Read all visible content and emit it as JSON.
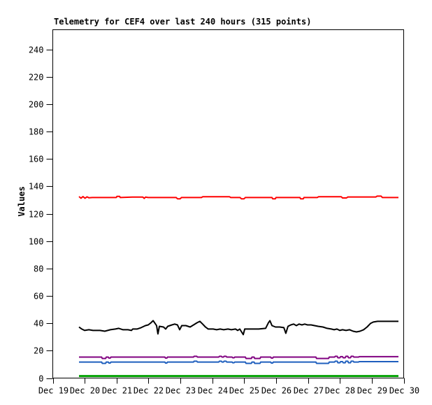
{
  "window": {
    "background": "#ffffff"
  },
  "chart_data": {
    "type": "line",
    "title": "Telemetry for CEF4 over last 240 hours (315 points)",
    "xlabel": "",
    "ylabel": "Values",
    "grid": false,
    "legend": "none",
    "border_color": "#000000",
    "x_axis": {
      "unit": "date",
      "tick_labels": [
        "Dec 19",
        "Dec 20",
        "Dec 21",
        "Dec 22",
        "Dec 23",
        "Dec 24",
        "Dec 25",
        "Dec 26",
        "Dec 27",
        "Dec 28",
        "Dec 29",
        "Dec 30"
      ],
      "data_span_hours": 240
    },
    "y_axis": {
      "ticks": [
        0,
        20,
        40,
        60,
        80,
        100,
        120,
        140,
        160,
        180,
        200,
        220,
        240
      ],
      "ylim": [
        0,
        254
      ]
    },
    "series": [
      {
        "name": "red",
        "color": "#ff0000",
        "width": 2,
        "points": [
          [
            0,
            132.5
          ],
          [
            1.5,
            131.3
          ],
          [
            3,
            132.5
          ],
          [
            4.5,
            131.3
          ],
          [
            6,
            132.3
          ],
          [
            7.5,
            131.6
          ],
          [
            10,
            131.8
          ],
          [
            28,
            131.8
          ],
          [
            28.5,
            132.6
          ],
          [
            30.5,
            132.6
          ],
          [
            31,
            131.8
          ],
          [
            40,
            132.1
          ],
          [
            48,
            132.1
          ],
          [
            49,
            131.2
          ],
          [
            50,
            132.1
          ],
          [
            52,
            131.8
          ],
          [
            73,
            131.8
          ],
          [
            74,
            130.9
          ],
          [
            76,
            130.9
          ],
          [
            77,
            131.8
          ],
          [
            92,
            131.8
          ],
          [
            93,
            132.4
          ],
          [
            113,
            132.4
          ],
          [
            114,
            131.8
          ],
          [
            121,
            131.8
          ],
          [
            122,
            130.9
          ],
          [
            124,
            130.9
          ],
          [
            125,
            131.8
          ],
          [
            145,
            131.8
          ],
          [
            145.5,
            130.9
          ],
          [
            147.5,
            130.9
          ],
          [
            148,
            131.8
          ],
          [
            166,
            131.8
          ],
          [
            166.5,
            130.9
          ],
          [
            168.5,
            130.9
          ],
          [
            169,
            131.8
          ],
          [
            179,
            131.8
          ],
          [
            180,
            132.4
          ],
          [
            197,
            132.4
          ],
          [
            198,
            131.5
          ],
          [
            201,
            131.5
          ],
          [
            202,
            132.2
          ],
          [
            223,
            132.2
          ],
          [
            224,
            132.8
          ],
          [
            227,
            132.8
          ],
          [
            228,
            131.8
          ],
          [
            240,
            131.8
          ]
        ]
      },
      {
        "name": "black",
        "color": "#000000",
        "width": 2,
        "points": [
          [
            0,
            37.3
          ],
          [
            2.1,
            35.8
          ],
          [
            4.2,
            34.8
          ],
          [
            7.4,
            35.3
          ],
          [
            10.5,
            34.8
          ],
          [
            15.8,
            34.8
          ],
          [
            19.4,
            34.2
          ],
          [
            23.6,
            35.3
          ],
          [
            27.3,
            35.8
          ],
          [
            29.9,
            36.3
          ],
          [
            33.1,
            35.3
          ],
          [
            36.8,
            35.3
          ],
          [
            39.4,
            34.8
          ],
          [
            40.4,
            35.8
          ],
          [
            43.6,
            35.8
          ],
          [
            46.7,
            36.8
          ],
          [
            49.9,
            38.3
          ],
          [
            52,
            38.8
          ],
          [
            54.1,
            40.4
          ],
          [
            55.7,
            41.9
          ],
          [
            57.2,
            39.9
          ],
          [
            58.3,
            38.3
          ],
          [
            59.3,
            32.2
          ],
          [
            60.4,
            37.8
          ],
          [
            63.5,
            37.3
          ],
          [
            65.1,
            35.8
          ],
          [
            66.7,
            37.8
          ],
          [
            69.8,
            38.8
          ],
          [
            71.9,
            39.4
          ],
          [
            74,
            38.8
          ],
          [
            75.6,
            35.3
          ],
          [
            77.2,
            38.3
          ],
          [
            80.3,
            38.3
          ],
          [
            83.5,
            37.3
          ],
          [
            86.1,
            38.8
          ],
          [
            88.7,
            40.4
          ],
          [
            90.8,
            41.4
          ],
          [
            92.9,
            39.4
          ],
          [
            95,
            37.3
          ],
          [
            97.1,
            35.8
          ],
          [
            100.8,
            35.8
          ],
          [
            103.4,
            35.3
          ],
          [
            106.1,
            35.8
          ],
          [
            108.7,
            35.3
          ],
          [
            111.9,
            35.8
          ],
          [
            114.5,
            35.3
          ],
          [
            117.6,
            35.8
          ],
          [
            119.2,
            34.8
          ],
          [
            120.8,
            35.8
          ],
          [
            123.4,
            31.7
          ],
          [
            124.5,
            35.8
          ],
          [
            129.7,
            35.8
          ],
          [
            135,
            35.8
          ],
          [
            140.2,
            36.3
          ],
          [
            142.3,
            40.4
          ],
          [
            143.4,
            41.9
          ],
          [
            145,
            38.3
          ],
          [
            147.6,
            37.3
          ],
          [
            150.7,
            37.3
          ],
          [
            153.9,
            36.8
          ],
          [
            155.4,
            32.7
          ],
          [
            157,
            37.8
          ],
          [
            159.1,
            38.8
          ],
          [
            161.2,
            39.4
          ],
          [
            163.3,
            38.3
          ],
          [
            165.4,
            39.4
          ],
          [
            167.5,
            38.8
          ],
          [
            169.6,
            39.4
          ],
          [
            171.7,
            38.8
          ],
          [
            174.4,
            38.8
          ],
          [
            177,
            38.3
          ],
          [
            179.6,
            37.8
          ],
          [
            183.3,
            37.3
          ],
          [
            186.4,
            36.3
          ],
          [
            189.6,
            35.8
          ],
          [
            191.7,
            35.3
          ],
          [
            193.8,
            35.8
          ],
          [
            195.9,
            34.8
          ],
          [
            198,
            35.3
          ],
          [
            200.6,
            34.8
          ],
          [
            203.3,
            35.3
          ],
          [
            205.9,
            34.2
          ],
          [
            208.5,
            33.7
          ],
          [
            211.1,
            34.2
          ],
          [
            213.8,
            35.3
          ],
          [
            216.4,
            37.3
          ],
          [
            219,
            39.9
          ],
          [
            221.1,
            40.9
          ],
          [
            224.3,
            41.4
          ],
          [
            229.5,
            41.4
          ],
          [
            234.7,
            41.4
          ],
          [
            240,
            41.4
          ]
        ]
      },
      {
        "name": "purple",
        "color": "#800080",
        "width": 2,
        "points": [
          [
            0,
            15.3
          ],
          [
            17,
            15.3
          ],
          [
            17.5,
            14.3
          ],
          [
            20,
            14.3
          ],
          [
            20.5,
            15.3
          ],
          [
            22,
            15.3
          ],
          [
            22.5,
            14.6
          ],
          [
            23.5,
            14.6
          ],
          [
            24,
            15.3
          ],
          [
            64.5,
            15.3
          ],
          [
            65,
            14.6
          ],
          [
            66,
            14.6
          ],
          [
            66.5,
            15.3
          ],
          [
            86,
            15.3
          ],
          [
            86.5,
            15.9
          ],
          [
            88.5,
            15.9
          ],
          [
            89,
            15.3
          ],
          [
            105,
            15.3
          ],
          [
            105.5,
            15.9
          ],
          [
            107,
            15.9
          ],
          [
            107.5,
            15.3
          ],
          [
            108.5,
            15.3
          ],
          [
            109,
            15.9
          ],
          [
            110.5,
            15.9
          ],
          [
            111,
            15.3
          ],
          [
            115,
            15.3
          ],
          [
            115.5,
            14.8
          ],
          [
            116.5,
            14.8
          ],
          [
            117,
            15.3
          ],
          [
            125,
            15.3
          ],
          [
            125.5,
            14.3
          ],
          [
            129.5,
            14.3
          ],
          [
            130,
            15.3
          ],
          [
            131.5,
            15.3
          ],
          [
            132,
            14.3
          ],
          [
            136,
            14.3
          ],
          [
            136.5,
            15.3
          ],
          [
            144,
            15.3
          ],
          [
            144.5,
            14.6
          ],
          [
            145.5,
            14.6
          ],
          [
            146,
            15.3
          ],
          [
            178,
            15.3
          ],
          [
            178.5,
            14.3
          ],
          [
            187.5,
            14.3
          ],
          [
            188,
            15.3
          ],
          [
            192,
            15.3
          ],
          [
            192.5,
            15.9
          ],
          [
            194,
            15.9
          ],
          [
            194.5,
            14.8
          ],
          [
            196,
            14.8
          ],
          [
            196.5,
            15.6
          ],
          [
            198,
            15.6
          ],
          [
            198.5,
            14.8
          ],
          [
            200,
            14.8
          ],
          [
            200.5,
            15.9
          ],
          [
            202,
            15.9
          ],
          [
            202.5,
            14.8
          ],
          [
            204,
            14.8
          ],
          [
            204.5,
            15.9
          ],
          [
            206,
            15.9
          ],
          [
            206.5,
            15.3
          ],
          [
            210,
            15.3
          ],
          [
            210.5,
            15.6
          ],
          [
            240,
            15.6
          ]
        ]
      },
      {
        "name": "blue",
        "color": "#1f5fbe",
        "width": 2,
        "points": [
          [
            0,
            11.7
          ],
          [
            17,
            11.7
          ],
          [
            17.5,
            10.7
          ],
          [
            20,
            10.7
          ],
          [
            20.5,
            11.7
          ],
          [
            22,
            11.7
          ],
          [
            22.5,
            11.0
          ],
          [
            23.5,
            11.0
          ],
          [
            24,
            11.7
          ],
          [
            64.5,
            11.7
          ],
          [
            65,
            11.0
          ],
          [
            66,
            11.0
          ],
          [
            66.5,
            11.7
          ],
          [
            86,
            11.7
          ],
          [
            86.5,
            12.3
          ],
          [
            88.5,
            12.3
          ],
          [
            89,
            11.7
          ],
          [
            105,
            11.7
          ],
          [
            105.5,
            12.3
          ],
          [
            107,
            12.3
          ],
          [
            107.5,
            11.7
          ],
          [
            108.5,
            11.7
          ],
          [
            109,
            12.3
          ],
          [
            110.5,
            12.3
          ],
          [
            111,
            11.7
          ],
          [
            115,
            11.7
          ],
          [
            115.5,
            11.2
          ],
          [
            116.5,
            11.2
          ],
          [
            117,
            11.7
          ],
          [
            125,
            11.7
          ],
          [
            125.5,
            10.7
          ],
          [
            129.5,
            10.7
          ],
          [
            130,
            11.7
          ],
          [
            131.5,
            11.7
          ],
          [
            132,
            10.7
          ],
          [
            136,
            10.7
          ],
          [
            136.5,
            11.7
          ],
          [
            144,
            11.7
          ],
          [
            144.5,
            11.0
          ],
          [
            145.5,
            11.0
          ],
          [
            146,
            11.7
          ],
          [
            178,
            11.7
          ],
          [
            178.5,
            10.7
          ],
          [
            187.5,
            10.7
          ],
          [
            188,
            11.7
          ],
          [
            192,
            11.7
          ],
          [
            192.5,
            12.3
          ],
          [
            194,
            12.3
          ],
          [
            194.5,
            11.2
          ],
          [
            196,
            11.2
          ],
          [
            196.5,
            12.0
          ],
          [
            198,
            12.0
          ],
          [
            198.5,
            11.2
          ],
          [
            200,
            11.2
          ],
          [
            200.5,
            12.3
          ],
          [
            202,
            12.3
          ],
          [
            202.5,
            11.2
          ],
          [
            204,
            11.2
          ],
          [
            204.5,
            12.3
          ],
          [
            206,
            12.3
          ],
          [
            206.5,
            11.7
          ],
          [
            210,
            11.7
          ],
          [
            210.5,
            12.0
          ],
          [
            240,
            12.0
          ]
        ]
      },
      {
        "name": "green",
        "color": "#00a000",
        "width": 3,
        "points": [
          [
            0,
            1.5
          ],
          [
            240,
            1.5
          ]
        ]
      }
    ]
  }
}
